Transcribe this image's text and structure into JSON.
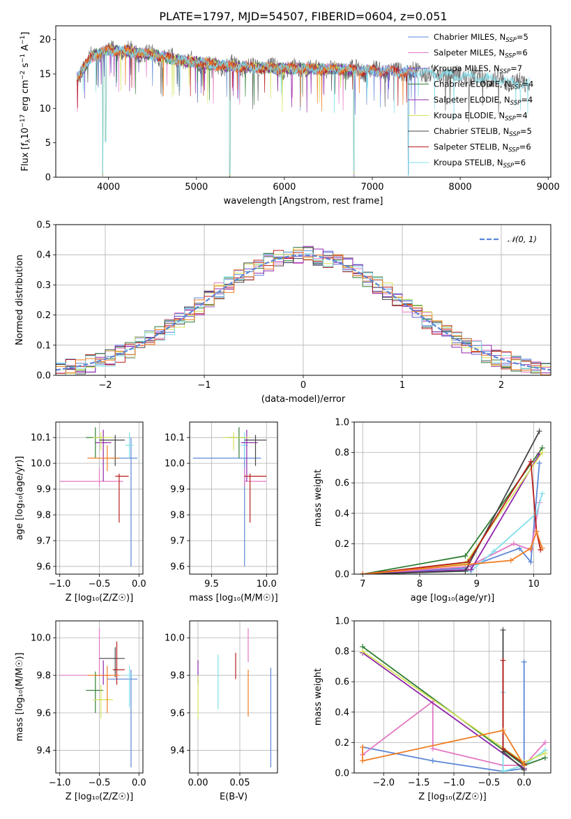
{
  "figure": {
    "title": "PLATE=1797, MJD=54507, FIBERID=0604, z=0.051"
  },
  "colors": {
    "Chabrier MILES": "#5b86d6",
    "Salpeter MILES": "#e377c2",
    "Kroupa MILES": "#6a5acd",
    "Chabrier ELODIE": "#2e7d32",
    "Salpeter ELODIE": "#8e24aa",
    "Kroupa ELODIE": "#d4e157",
    "Chabrier STELIB": "#444444",
    "Salpeter STELIB": "#b71c1c",
    "Kroupa STELIB": "#80deea",
    "normal": "#5b86d6",
    "orange": "#ef7c21"
  },
  "chart_data": [
    {
      "id": "spectrum",
      "type": "line",
      "xlabel": "wavelength [Angstrom, rest frame]",
      "ylabel_parts": {
        "base": "Flux [f",
        "sub": "λ",
        "mid": "10",
        "sup1": "−17",
        "rest": " erg cm",
        "sup2": "−2",
        "rest2": " s",
        "sup3": "−1",
        "rest3": " A",
        "sup4": "−1",
        "end": "]"
      },
      "xlim": [
        3400,
        9030
      ],
      "ylim": [
        0,
        22
      ],
      "xticks": [
        4000,
        5000,
        6000,
        7000,
        8000,
        9000
      ],
      "yticks": [
        0,
        5,
        10,
        15,
        20
      ],
      "grid": false,
      "legend_position": "top-right",
      "legend": [
        {
          "name": "Chabrier MILES",
          "n": "5"
        },
        {
          "name": "Salpeter MILES",
          "n": "6"
        },
        {
          "name": "Kroupa MILES",
          "n": "7"
        },
        {
          "name": "Chabrier ELODIE",
          "n": "4"
        },
        {
          "name": "Salpeter ELODIE",
          "n": "4"
        },
        {
          "name": "Kroupa ELODIE",
          "n": "4"
        },
        {
          "name": "Chabrier STELIB",
          "n": "5"
        },
        {
          "name": "Salpeter STELIB",
          "n": "6"
        },
        {
          "name": "Kroupa STELIB",
          "n": "6"
        }
      ],
      "legend_nlabel": {
        "pre": "N",
        "sub": "SSP",
        "eq": "="
      },
      "continuum": {
        "x": [
          3650,
          3800,
          4000,
          4200,
          4500,
          4800,
          5000,
          5300,
          5600,
          6000,
          6300,
          6600,
          6900,
          7200,
          7500,
          7800,
          8100,
          8400,
          8700
        ],
        "y": [
          14.5,
          17.5,
          18.5,
          18.3,
          17.8,
          17.0,
          16.7,
          16.2,
          16.0,
          15.8,
          15.8,
          15.7,
          15.5,
          15.4,
          15.3,
          14.9,
          14.6,
          14.2,
          13.6
        ]
      },
      "dips": [
        {
          "x": 3934,
          "y": 0.0
        },
        {
          "x": 3968,
          "y": 5.0
        },
        {
          "x": 5380,
          "y": 0.0
        },
        {
          "x": 6790,
          "y": 0.0
        },
        {
          "x": 7410,
          "y": 0.0
        }
      ]
    },
    {
      "id": "residuals",
      "type": "histogram",
      "xlabel": "(data-model)/error",
      "ylabel": "Normed distribution",
      "xlim": [
        -2.5,
        2.5
      ],
      "ylim": [
        0,
        0.5
      ],
      "xticks": [
        -2,
        -1,
        0,
        1,
        2
      ],
      "yticks": [
        0.0,
        0.1,
        0.2,
        0.3,
        0.4,
        0.5
      ],
      "grid": true,
      "legend_position": "top-right",
      "legend": [
        "𝒩(0, 1)"
      ],
      "bin_width": 0.1
    },
    {
      "id": "age-vs-Z",
      "type": "errorbar",
      "xlabel": "Z [log₁₀(Z/Z☉)]",
      "ylabel": "age  [log₁₀(age/yr)]",
      "xlim": [
        -1.05,
        0.05
      ],
      "ylim": [
        9.57,
        10.16
      ],
      "xticks": [
        -1.0,
        -0.5,
        0.0
      ],
      "yticks": [
        9.6,
        9.7,
        9.8,
        9.9,
        10.0,
        10.1
      ],
      "grid": true,
      "points": [
        {
          "series": "Chabrier MILES",
          "x": -0.1,
          "xerr": [
            0.25,
            0.08
          ],
          "y": 10.02,
          "yerr": [
            0.42,
            0.08
          ]
        },
        {
          "series": "Salpeter MILES",
          "x": -0.5,
          "xerr": [
            0.5,
            0.3
          ],
          "y": 9.93,
          "yerr": [
            0.02,
            0.05
          ]
        },
        {
          "series": "Kroupa STELIB",
          "x": -0.12,
          "xerr": [
            0.05,
            0.05
          ],
          "y": 10.07,
          "yerr": [
            0.05,
            0.05
          ]
        },
        {
          "series": "Chabrier ELODIE",
          "x": -0.55,
          "xerr": [
            0.12,
            0.1
          ],
          "y": 10.1,
          "yerr": [
            0.08,
            0.04
          ]
        },
        {
          "series": "Salpeter ELODIE",
          "x": -0.45,
          "xerr": [
            0.1,
            0.1
          ],
          "y": 10.08,
          "yerr": [
            0.15,
            0.05
          ]
        },
        {
          "series": "Kroupa ELODIE",
          "x": -0.48,
          "xerr": [
            0.1,
            0.15
          ],
          "y": 10.1,
          "yerr": [
            0.05,
            0.02
          ]
        },
        {
          "series": "Chabrier STELIB",
          "x": -0.3,
          "xerr": [
            0.2,
            0.12
          ],
          "y": 10.09,
          "yerr": [
            0.1,
            0.02
          ]
        },
        {
          "series": "Salpeter STELIB",
          "x": -0.25,
          "xerr": [
            0.05,
            0.12
          ],
          "y": 9.95,
          "yerr": [
            0.18,
            0.01
          ]
        },
        {
          "series": "orange",
          "x": -0.4,
          "xerr": [
            0.25,
            0.15
          ],
          "y": 10.02,
          "yerr": [
            0.05,
            0.05
          ]
        }
      ]
    },
    {
      "id": "age-vs-mass",
      "type": "errorbar",
      "xlabel": "mass [log₁₀(M/M☉)]",
      "ylabel": "",
      "xlim": [
        9.3,
        10.1
      ],
      "ylim": [
        9.57,
        10.16
      ],
      "xticks": [
        9.5,
        10.0
      ],
      "yticks": [
        9.6,
        9.7,
        9.8,
        9.9,
        10.0,
        10.1
      ],
      "grid": true,
      "points": [
        {
          "series": "Chabrier MILES",
          "x": 9.8,
          "xerr": [
            0.47,
            0.15
          ],
          "y": 10.02,
          "yerr": [
            0.42,
            0.08
          ]
        },
        {
          "series": "Salpeter MILES",
          "x": 9.8,
          "xerr": [
            0.0,
            0.2
          ],
          "y": 9.93,
          "yerr": [
            0.02,
            0.05
          ]
        },
        {
          "series": "Kroupa STELIB",
          "x": 9.8,
          "xerr": [
            0.03,
            0.03
          ],
          "y": 10.07,
          "yerr": [
            0.05,
            0.05
          ]
        },
        {
          "series": "Chabrier ELODIE",
          "x": 9.75,
          "xerr": [
            0.1,
            0.05
          ],
          "y": 10.1,
          "yerr": [
            0.08,
            0.04
          ]
        },
        {
          "series": "Salpeter ELODIE",
          "x": 9.82,
          "xerr": [
            0.05,
            0.1
          ],
          "y": 10.08,
          "yerr": [
            0.15,
            0.05
          ]
        },
        {
          "series": "Kroupa ELODIE",
          "x": 9.7,
          "xerr": [
            0.1,
            0.15
          ],
          "y": 10.1,
          "yerr": [
            0.05,
            0.02
          ]
        },
        {
          "series": "Chabrier STELIB",
          "x": 9.9,
          "xerr": [
            0.1,
            0.1
          ],
          "y": 10.09,
          "yerr": [
            0.1,
            0.02
          ]
        },
        {
          "series": "Salpeter STELIB",
          "x": 9.85,
          "xerr": [
            0.05,
            0.15
          ],
          "y": 9.95,
          "yerr": [
            0.18,
            0.01
          ]
        }
      ]
    },
    {
      "id": "massweight-vs-age",
      "type": "line",
      "xlabel": "age  [log₁₀(age/yr)]",
      "ylabel": "mass weight",
      "xlim": [
        6.85,
        10.3
      ],
      "ylim": [
        0.0,
        1.0
      ],
      "xticks": [
        7,
        8,
        9,
        10
      ],
      "yticks": [
        0.0,
        0.2,
        0.4,
        0.6,
        0.8,
        1.0
      ],
      "grid": true,
      "series": [
        {
          "name": "Chabrier MILES",
          "x": [
            7.0,
            8.8,
            9.75,
            9.95,
            10.1
          ],
          "y": [
            0.0,
            0.04,
            0.17,
            0.08,
            0.73
          ]
        },
        {
          "name": "Salpeter MILES",
          "x": [
            7.0,
            8.85,
            9.65,
            9.95,
            10.1
          ],
          "y": [
            0.0,
            0.05,
            0.2,
            0.16,
            0.47
          ]
        },
        {
          "name": "Kroupa STELIB",
          "x": [
            7.0,
            8.9,
            9.3,
            10.05,
            10.15
          ],
          "y": [
            0.0,
            0.02,
            0.15,
            0.4,
            0.53
          ]
        },
        {
          "name": "Chabrier ELODIE",
          "x": [
            7.0,
            8.8,
            10.15
          ],
          "y": [
            0.0,
            0.12,
            0.83
          ]
        },
        {
          "name": "Salpeter ELODIE",
          "x": [
            7.0,
            8.9,
            10.1
          ],
          "y": [
            0.0,
            0.03,
            0.79
          ]
        },
        {
          "name": "Kroupa ELODIE",
          "x": [
            7.0,
            8.8,
            10.15
          ],
          "y": [
            0.0,
            0.07,
            0.8
          ]
        },
        {
          "name": "Chabrier STELIB",
          "x": [
            7.0,
            8.8,
            10.1
          ],
          "y": [
            0.0,
            0.02,
            0.94
          ]
        },
        {
          "name": "Salpeter STELIB",
          "x": [
            7.0,
            8.85,
            9.95,
            10.05,
            10.12
          ],
          "y": [
            0.0,
            0.08,
            0.74,
            0.28,
            0.16
          ]
        },
        {
          "name": "orange",
          "x": [
            7.0,
            9.6,
            9.95,
            10.05,
            10.15
          ],
          "y": [
            0.0,
            0.09,
            0.17,
            0.28,
            0.17
          ]
        }
      ]
    },
    {
      "id": "mass-vs-Z",
      "type": "errorbar",
      "xlabel": "Z [log₁₀(Z/Z☉)]",
      "ylabel": "mass [log₁₀(M/M☉)]",
      "xlim": [
        -1.05,
        0.05
      ],
      "ylim": [
        9.28,
        10.09
      ],
      "xticks": [
        -1.0,
        -0.5,
        0.0
      ],
      "yticks": [
        9.4,
        9.6,
        9.8,
        10.0
      ],
      "grid": true,
      "points": [
        {
          "series": "Chabrier MILES",
          "x": -0.1,
          "xerr": [
            0.3,
            0.08
          ],
          "y": 9.78,
          "yerr": [
            0.47,
            0.05
          ]
        },
        {
          "series": "Salpeter MILES",
          "x": -0.5,
          "xerr": [
            0.5,
            0.2
          ],
          "y": 9.8,
          "yerr": [
            0.0,
            0.25
          ]
        },
        {
          "series": "Kroupa STELIB",
          "x": -0.12,
          "xerr": [
            0.05,
            0.05
          ],
          "y": 9.8,
          "yerr": [
            0.17,
            0.05
          ]
        },
        {
          "series": "Chabrier ELODIE",
          "x": -0.55,
          "xerr": [
            0.12,
            0.1
          ],
          "y": 9.72,
          "yerr": [
            0.12,
            0.1
          ]
        },
        {
          "series": "Salpeter ELODIE",
          "x": -0.45,
          "xerr": [
            0.1,
            0.1
          ],
          "y": 9.8,
          "yerr": [
            0.05,
            0.08
          ]
        },
        {
          "series": "Kroupa ELODIE",
          "x": -0.48,
          "xerr": [
            0.1,
            0.15
          ],
          "y": 9.67,
          "yerr": [
            0.1,
            0.08
          ]
        },
        {
          "series": "Chabrier STELIB",
          "x": -0.3,
          "xerr": [
            0.2,
            0.12
          ],
          "y": 9.89,
          "yerr": [
            0.1,
            0.06
          ]
        },
        {
          "series": "Salpeter STELIB",
          "x": -0.28,
          "xerr": [
            0.05,
            0.1
          ],
          "y": 9.83,
          "yerr": [
            0.08,
            0.15
          ]
        },
        {
          "series": "orange",
          "x": -0.4,
          "xerr": [
            0.25,
            0.15
          ],
          "y": 9.8,
          "yerr": [
            0.2,
            0.05
          ]
        }
      ]
    },
    {
      "id": "mass-vs-EBV",
      "type": "errorbar",
      "xlabel": "E(B-V)",
      "ylabel": "",
      "xlim": [
        -0.01,
        0.095
      ],
      "ylim": [
        9.28,
        10.09
      ],
      "xticks": [
        0.0,
        0.05
      ],
      "yticks": [
        9.4,
        9.6,
        9.8,
        10.0
      ],
      "grid": true,
      "points": [
        {
          "series": "Salpeter ELODIE",
          "x": 0.0,
          "y": 9.8,
          "yerr": [
            0.05,
            0.08
          ]
        },
        {
          "series": "Kroupa ELODIE",
          "x": 0.0,
          "y": 9.7,
          "yerr": [
            0.13,
            0.1
          ]
        },
        {
          "series": "Kroupa STELIB",
          "x": 0.024,
          "y": 9.78,
          "yerr": [
            0.16,
            0.13
          ]
        },
        {
          "series": "Salpeter STELIB",
          "x": 0.045,
          "y": 9.85,
          "yerr": [
            0.07,
            0.07
          ]
        },
        {
          "series": "Salpeter MILES",
          "x": 0.06,
          "y": 9.92,
          "yerr": [
            0.05,
            0.13
          ]
        },
        {
          "series": "orange",
          "x": 0.06,
          "y": 9.78,
          "yerr": [
            0.2,
            0.05
          ]
        },
        {
          "series": "Chabrier MILES",
          "x": 0.087,
          "y": 9.58,
          "yerr": [
            0.27,
            0.26
          ]
        }
      ]
    },
    {
      "id": "massweight-vs-Z",
      "type": "line",
      "xlabel": "Z [log₁₀(Z/Z☉)]",
      "ylabel": "mass weight",
      "xlim": [
        -2.42,
        0.38
      ],
      "ylim": [
        0.0,
        1.0
      ],
      "xticks": [
        -2.0,
        -1.5,
        -1.0,
        -0.5,
        0.0
      ],
      "yticks": [
        0.0,
        0.2,
        0.4,
        0.6,
        0.8,
        1.0
      ],
      "grid": true,
      "series": [
        {
          "name": "Chabrier MILES",
          "x": [
            -2.3,
            -1.3,
            -0.3,
            0.0,
            0.0
          ],
          "y": [
            0.17,
            0.08,
            0.01,
            0.03,
            0.73
          ]
        },
        {
          "name": "Salpeter MILES",
          "x": [
            -2.3,
            -1.3,
            -1.3,
            -0.3,
            0.0,
            0.3
          ],
          "y": [
            0.12,
            0.47,
            0.16,
            0.05,
            0.05,
            0.2
          ]
        },
        {
          "name": "Kroupa STELIB",
          "x": [
            -0.3,
            -0.3,
            0.0,
            0.3
          ],
          "y": [
            0.53,
            0.01,
            0.05,
            0.15
          ]
        },
        {
          "name": "Chabrier ELODIE",
          "x": [
            -2.3,
            0.0,
            0.3
          ],
          "y": [
            0.83,
            0.05,
            0.1
          ]
        },
        {
          "name": "Salpeter ELODIE",
          "x": [
            -2.3,
            0.0
          ],
          "y": [
            0.79,
            0.03
          ]
        },
        {
          "name": "Kroupa ELODIE",
          "x": [
            -2.3,
            0.0,
            0.3
          ],
          "y": [
            0.8,
            0.07,
            0.13
          ]
        },
        {
          "name": "Chabrier STELIB",
          "x": [
            -0.3,
            -0.3,
            0.0
          ],
          "y": [
            0.94,
            0.14,
            0.02
          ]
        },
        {
          "name": "Salpeter STELIB",
          "x": [
            -0.3,
            -0.3,
            0.0
          ],
          "y": [
            0.74,
            0.16,
            0.06
          ]
        },
        {
          "name": "orange",
          "x": [
            -2.3,
            -2.3,
            -0.3,
            0.0
          ],
          "y": [
            0.17,
            0.08,
            0.28,
            0.05
          ]
        }
      ]
    }
  ]
}
